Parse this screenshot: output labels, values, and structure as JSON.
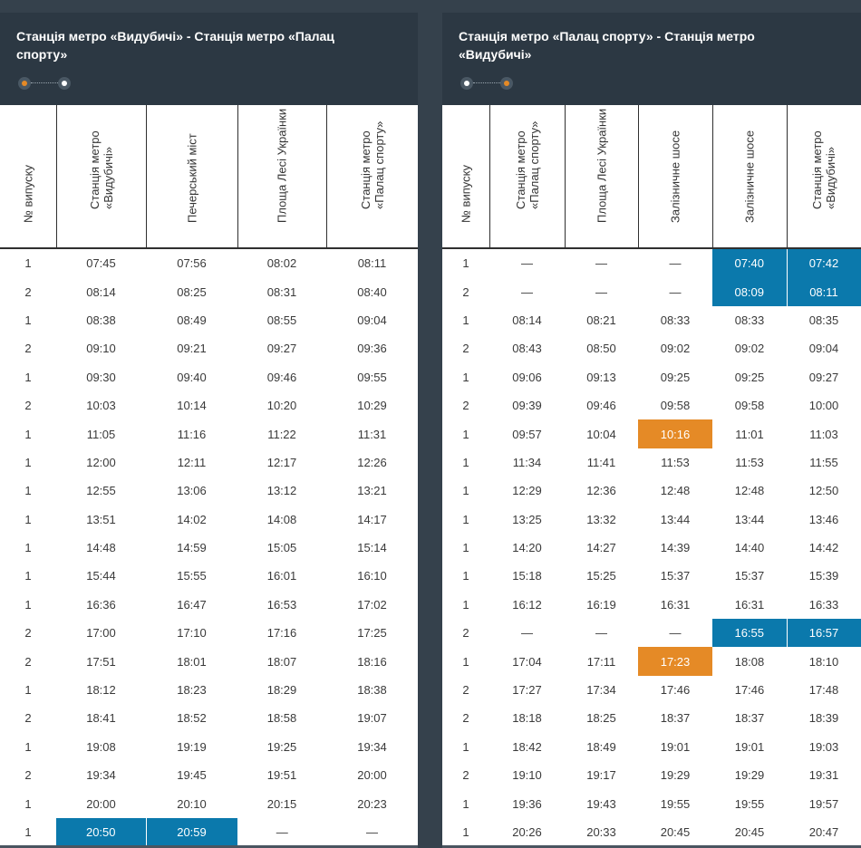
{
  "left": {
    "title": "Станція метро «Видубичі» - Станція метро «Палац спорту»",
    "headers": [
      "№ випуску",
      "Станція метро «Видубичі»",
      "Печерський міст",
      "Площа Лесі Українки",
      "Станція метро «Палац спорту»"
    ],
    "rows": [
      [
        "1",
        "07:45",
        "07:56",
        "08:02",
        "08:11"
      ],
      [
        "2",
        "08:14",
        "08:25",
        "08:31",
        "08:40"
      ],
      [
        "1",
        "08:38",
        "08:49",
        "08:55",
        "09:04"
      ],
      [
        "2",
        "09:10",
        "09:21",
        "09:27",
        "09:36"
      ],
      [
        "1",
        "09:30",
        "09:40",
        "09:46",
        "09:55"
      ],
      [
        "2",
        "10:03",
        "10:14",
        "10:20",
        "10:29"
      ],
      [
        "1",
        "11:05",
        "11:16",
        "11:22",
        "11:31"
      ],
      [
        "1",
        "12:00",
        "12:11",
        "12:17",
        "12:26"
      ],
      [
        "1",
        "12:55",
        "13:06",
        "13:12",
        "13:21"
      ],
      [
        "1",
        "13:51",
        "14:02",
        "14:08",
        "14:17"
      ],
      [
        "1",
        "14:48",
        "14:59",
        "15:05",
        "15:14"
      ],
      [
        "1",
        "15:44",
        "15:55",
        "16:01",
        "16:10"
      ],
      [
        "1",
        "16:36",
        "16:47",
        "16:53",
        "17:02"
      ],
      [
        "2",
        "17:00",
        "17:10",
        "17:16",
        "17:25"
      ],
      [
        "2",
        "17:51",
        "18:01",
        "18:07",
        "18:16"
      ],
      [
        "1",
        "18:12",
        "18:23",
        "18:29",
        "18:38"
      ],
      [
        "2",
        "18:41",
        "18:52",
        "18:58",
        "19:07"
      ],
      [
        "1",
        "19:08",
        "19:19",
        "19:25",
        "19:34"
      ],
      [
        "2",
        "19:34",
        "19:45",
        "19:51",
        "20:00"
      ],
      [
        "1",
        "20:00",
        "20:10",
        "20:15",
        "20:23"
      ],
      [
        "1",
        "20:50",
        "20:59",
        "—",
        "—"
      ]
    ],
    "highlights": [
      {
        "row": 20,
        "col": 1,
        "color": "blue"
      },
      {
        "row": 20,
        "col": 2,
        "color": "blue"
      }
    ]
  },
  "right": {
    "title": "Станція метро «Палац спорту» - Станція метро «Видубичі»",
    "headers": [
      "№ випуску",
      "Станція метро «Палац спорту»",
      "Площа Лесі Українки",
      "Залізничне шосе",
      "Залізничне шосе",
      "Станція метро «Видубичі»"
    ],
    "rows": [
      [
        "1",
        "—",
        "—",
        "—",
        "07:40",
        "07:42"
      ],
      [
        "2",
        "—",
        "—",
        "—",
        "08:09",
        "08:11"
      ],
      [
        "1",
        "08:14",
        "08:21",
        "08:33",
        "08:33",
        "08:35"
      ],
      [
        "2",
        "08:43",
        "08:50",
        "09:02",
        "09:02",
        "09:04"
      ],
      [
        "1",
        "09:06",
        "09:13",
        "09:25",
        "09:25",
        "09:27"
      ],
      [
        "2",
        "09:39",
        "09:46",
        "09:58",
        "09:58",
        "10:00"
      ],
      [
        "1",
        "09:57",
        "10:04",
        "10:16",
        "11:01",
        "11:03"
      ],
      [
        "1",
        "11:34",
        "11:41",
        "11:53",
        "11:53",
        "11:55"
      ],
      [
        "1",
        "12:29",
        "12:36",
        "12:48",
        "12:48",
        "12:50"
      ],
      [
        "1",
        "13:25",
        "13:32",
        "13:44",
        "13:44",
        "13:46"
      ],
      [
        "1",
        "14:20",
        "14:27",
        "14:39",
        "14:40",
        "14:42"
      ],
      [
        "1",
        "15:18",
        "15:25",
        "15:37",
        "15:37",
        "15:39"
      ],
      [
        "1",
        "16:12",
        "16:19",
        "16:31",
        "16:31",
        "16:33"
      ],
      [
        "2",
        "—",
        "—",
        "—",
        "16:55",
        "16:57"
      ],
      [
        "1",
        "17:04",
        "17:11",
        "17:23",
        "18:08",
        "18:10"
      ],
      [
        "2",
        "17:27",
        "17:34",
        "17:46",
        "17:46",
        "17:48"
      ],
      [
        "2",
        "18:18",
        "18:25",
        "18:37",
        "18:37",
        "18:39"
      ],
      [
        "1",
        "18:42",
        "18:49",
        "19:01",
        "19:01",
        "19:03"
      ],
      [
        "2",
        "19:10",
        "19:17",
        "19:29",
        "19:29",
        "19:31"
      ],
      [
        "1",
        "19:36",
        "19:43",
        "19:55",
        "19:55",
        "19:57"
      ],
      [
        "1",
        "20:26",
        "20:33",
        "20:45",
        "20:45",
        "20:47"
      ]
    ],
    "highlights": [
      {
        "row": 0,
        "col": 4,
        "color": "blue"
      },
      {
        "row": 0,
        "col": 5,
        "color": "blue"
      },
      {
        "row": 1,
        "col": 4,
        "color": "blue"
      },
      {
        "row": 1,
        "col": 5,
        "color": "blue"
      },
      {
        "row": 6,
        "col": 3,
        "color": "orange"
      },
      {
        "row": 13,
        "col": 4,
        "color": "blue"
      },
      {
        "row": 13,
        "col": 5,
        "color": "blue"
      },
      {
        "row": 14,
        "col": 3,
        "color": "orange"
      }
    ]
  },
  "colors": {
    "header_bg": "#2c3843",
    "highlight_blue": "#0b79ac",
    "highlight_orange": "#e58a26"
  }
}
